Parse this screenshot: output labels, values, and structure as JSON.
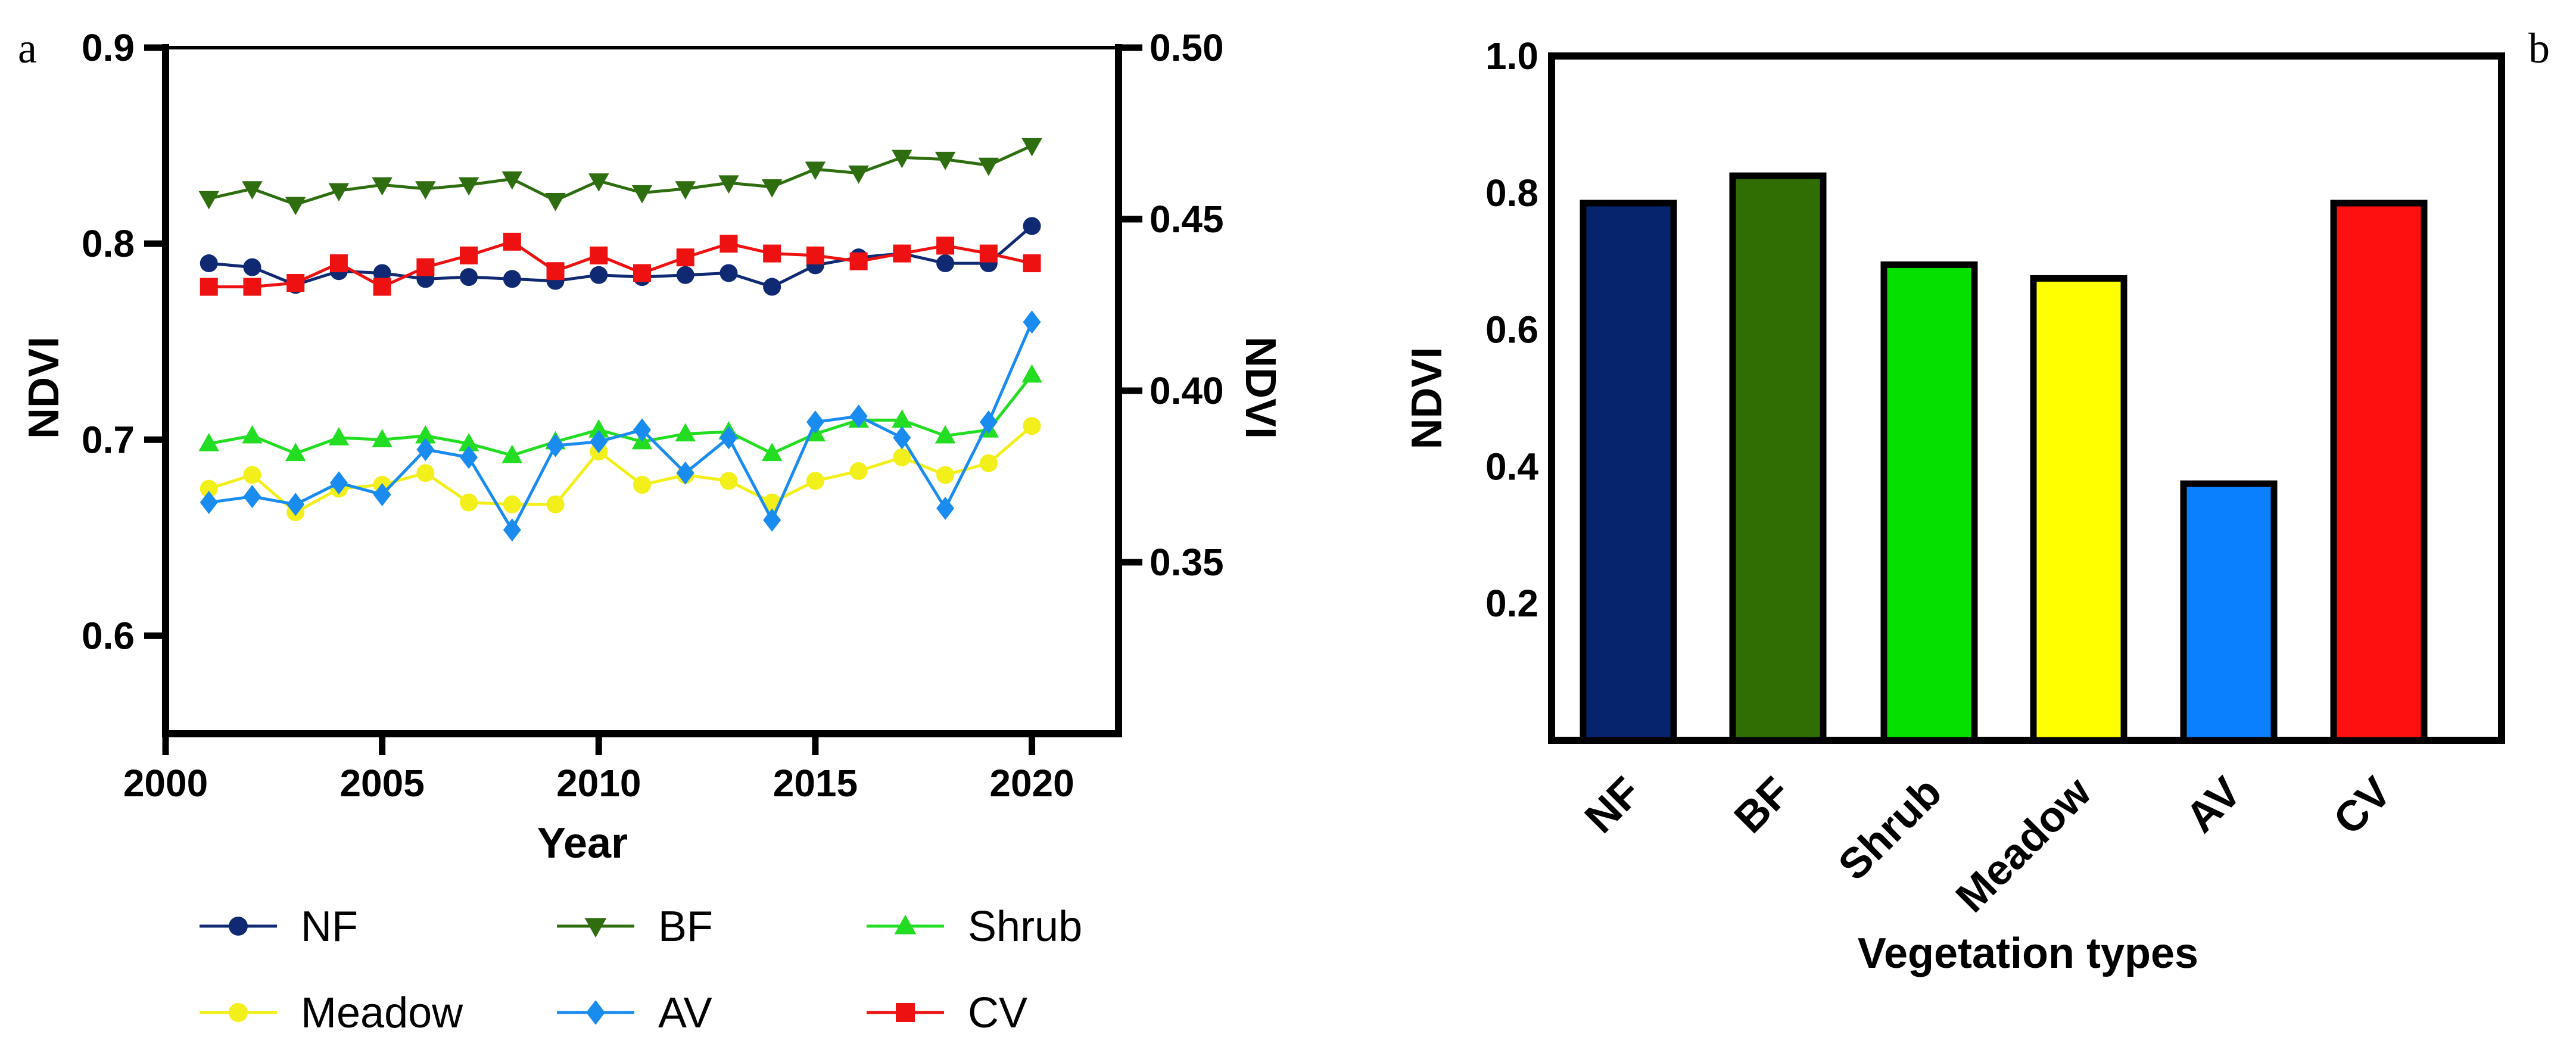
{
  "panels": {
    "a": "a",
    "b": "b"
  },
  "chart_data": [
    {
      "type": "line",
      "panel": "a",
      "xlabel": "Year",
      "ylabel_left": "NDVI",
      "ylabel_right": "NDVI",
      "xlim": [
        2000,
        2022
      ],
      "ylim_left": [
        0.55,
        0.9
      ],
      "ylim_right": [
        0.3,
        0.5
      ],
      "xticks": [
        "2000",
        "2005",
        "2010",
        "2015",
        "2020"
      ],
      "yticks_left": [
        "0.6",
        "0.7",
        "0.8",
        "0.9"
      ],
      "yticks_right": [
        "0.35",
        "0.40",
        "0.45",
        "0.50"
      ],
      "x": [
        2001,
        2002,
        2003,
        2004,
        2005,
        2006,
        2007,
        2008,
        2009,
        2010,
        2011,
        2012,
        2013,
        2014,
        2015,
        2016,
        2017,
        2018,
        2019,
        2020
      ],
      "series": [
        {
          "name": "NF",
          "color": "#0f2a73",
          "marker": "circle",
          "axis": "left",
          "values": [
            0.79,
            0.788,
            0.779,
            0.786,
            0.785,
            0.782,
            0.783,
            0.782,
            0.781,
            0.784,
            0.783,
            0.784,
            0.785,
            0.778,
            0.789,
            0.793,
            0.795,
            0.79,
            0.79,
            0.809
          ]
        },
        {
          "name": "BF",
          "color": "#2f6e10",
          "marker": "triangle-down",
          "axis": "left",
          "values": [
            0.823,
            0.828,
            0.82,
            0.827,
            0.83,
            0.828,
            0.83,
            0.833,
            0.822,
            0.832,
            0.826,
            0.828,
            0.831,
            0.829,
            0.838,
            0.836,
            0.844,
            0.843,
            0.84,
            0.85
          ]
        },
        {
          "name": "Shrub",
          "color": "#22dd22",
          "marker": "triangle-up",
          "axis": "left",
          "values": [
            0.698,
            0.702,
            0.693,
            0.701,
            0.7,
            0.702,
            0.698,
            0.692,
            0.699,
            0.705,
            0.699,
            0.703,
            0.704,
            0.693,
            0.703,
            0.71,
            0.71,
            0.702,
            0.705,
            0.733
          ]
        },
        {
          "name": "Meadow",
          "color": "#f2ef1a",
          "marker": "circle",
          "axis": "left",
          "values": [
            0.675,
            0.682,
            0.663,
            0.675,
            0.677,
            0.683,
            0.668,
            0.667,
            0.667,
            0.694,
            0.677,
            0.682,
            0.679,
            0.668,
            0.679,
            0.684,
            0.691,
            0.682,
            0.688,
            0.707
          ]
        },
        {
          "name": "AV",
          "color": "#1a8cf0",
          "marker": "diamond",
          "axis": "left",
          "values": [
            0.668,
            0.671,
            0.667,
            0.678,
            0.672,
            0.695,
            0.691,
            0.654,
            0.697,
            0.699,
            0.705,
            0.683,
            0.701,
            0.659,
            0.709,
            0.712,
            0.701,
            0.665,
            0.709,
            0.76
          ]
        },
        {
          "name": "CV",
          "color": "#ee1111",
          "marker": "square",
          "axis": "left",
          "values": [
            0.778,
            0.778,
            0.78,
            0.79,
            0.778,
            0.788,
            0.794,
            0.801,
            0.786,
            0.794,
            0.785,
            0.793,
            0.8,
            0.795,
            0.794,
            0.791,
            0.795,
            0.799,
            0.795,
            0.79
          ]
        }
      ],
      "legend": [
        "NF",
        "BF",
        "Shrub",
        "Meadow",
        "AV",
        "CV"
      ],
      "legend_position": "bottom"
    },
    {
      "type": "bar",
      "panel": "b",
      "xlabel": "Vegetation types",
      "ylabel": "NDVI",
      "ylim": [
        0,
        1.0
      ],
      "yticks": [
        "0.2",
        "0.4",
        "0.6",
        "0.8",
        "1.0"
      ],
      "categories": [
        "NF",
        "BF",
        "Shrub",
        "Meadow",
        "AV",
        "CV"
      ],
      "values": [
        0.785,
        0.825,
        0.695,
        0.675,
        0.375,
        0.785
      ],
      "colors": [
        "#06236e",
        "#2f6e02",
        "#06e000",
        "#ffff00",
        "#0a80ff",
        "#ff1010"
      ]
    }
  ]
}
